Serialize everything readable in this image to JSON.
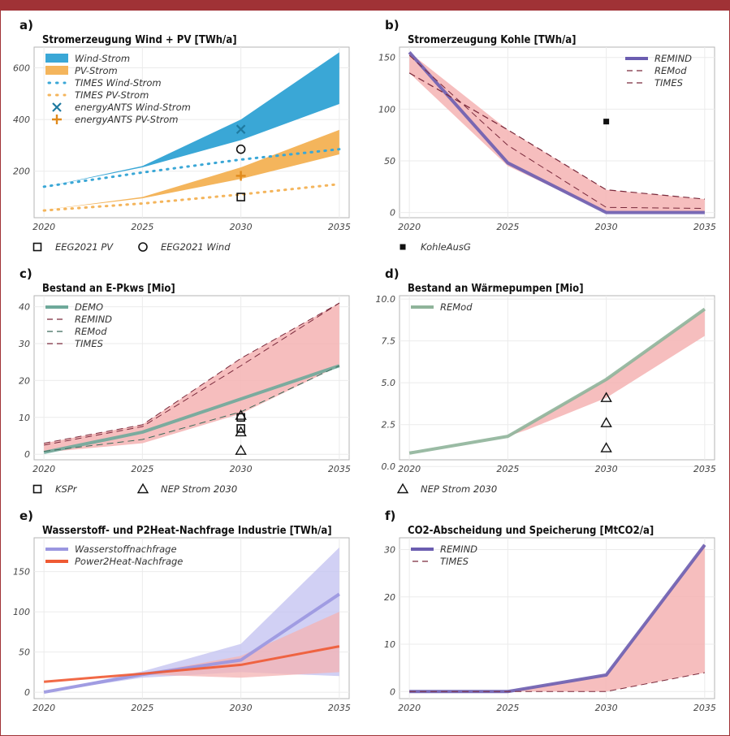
{
  "colors": {
    "frame": "#a03236",
    "wind": "#3aa7d6",
    "pv": "#f4b55c",
    "purple": "#6b5db0",
    "band_red": "#f4b3b3",
    "dark_red": "#7a2a3c",
    "green": "#6ea99a",
    "green_line": "#8fb49a",
    "lavender": "#9a96e0",
    "orange": "#ef5a33",
    "black": "#111111"
  },
  "chart_data": [
    {
      "id": "a",
      "label": "a)",
      "type": "area",
      "title": "Stromerzeugung Wind + PV [TWh/a]",
      "x_ticks": [
        "2020",
        "2025",
        "2030",
        "2035"
      ],
      "y_ticks": [
        200,
        400,
        600
      ],
      "xlim": [
        2019.5,
        2035.5
      ],
      "ylim": [
        20,
        680
      ],
      "bands": [
        {
          "name": "Wind-Strom",
          "color": "#3aa7d6",
          "x": [
            2020,
            2025,
            2030,
            2035
          ],
          "lower": [
            138,
            215,
            320,
            460
          ],
          "upper": [
            138,
            220,
            400,
            660
          ]
        },
        {
          "name": "PV-Strom",
          "color": "#f4b55c",
          "x": [
            2020,
            2025,
            2030,
            2035
          ],
          "lower": [
            50,
            95,
            170,
            265
          ],
          "upper": [
            50,
            100,
            215,
            360
          ]
        }
      ],
      "lines": [
        {
          "name": "TIMES Wind-Strom",
          "color": "#3aa7d6",
          "dash": "dot",
          "x": [
            2020,
            2025,
            2030,
            2035
          ],
          "y": [
            140,
            195,
            245,
            285
          ]
        },
        {
          "name": "TIMES PV-Strom",
          "color": "#f4b55c",
          "dash": "dot",
          "x": [
            2020,
            2025,
            2030,
            2035
          ],
          "y": [
            48,
            75,
            110,
            150
          ]
        }
      ],
      "points": [
        {
          "name": "energyANTS Wind-Strom",
          "marker": "x",
          "color": "#1f7aa0",
          "x": 2030,
          "y": 362
        },
        {
          "name": "energyANTS PV-Strom",
          "marker": "plus",
          "color": "#e08a1c",
          "x": 2030,
          "y": 182
        },
        {
          "name": "EEG2021 Wind",
          "marker": "circle",
          "color": "#111111",
          "x": 2030,
          "y": 285
        },
        {
          "name": "EEG2021 PV",
          "marker": "square",
          "color": "#111111",
          "x": 2030,
          "y": 100
        }
      ],
      "legend": [
        {
          "label": "Wind-Strom",
          "kind": "band",
          "color": "#3aa7d6"
        },
        {
          "label": "PV-Strom",
          "kind": "band",
          "color": "#f4b55c"
        },
        {
          "label": "TIMES Wind-Strom",
          "kind": "dot",
          "color": "#3aa7d6"
        },
        {
          "label": "TIMES PV-Strom",
          "kind": "dot",
          "color": "#f4b55c"
        },
        {
          "label": "energyANTS Wind-Strom",
          "kind": "x",
          "color": "#1f7aa0"
        },
        {
          "label": "energyANTS PV-Strom",
          "kind": "plus",
          "color": "#e08a1c"
        }
      ],
      "bottom_legend": [
        {
          "label": "EEG2021 PV",
          "marker": "square"
        },
        {
          "label": "EEG2021 Wind",
          "marker": "circle"
        }
      ]
    },
    {
      "id": "b",
      "label": "b)",
      "type": "line",
      "title": "Stromerzeugung Kohle [TWh/a]",
      "x_ticks": [
        "2020",
        "2025",
        "2030",
        "2035"
      ],
      "y_ticks": [
        0,
        50,
        100,
        150
      ],
      "xlim": [
        2019.5,
        2035.5
      ],
      "ylim": [
        -5,
        160
      ],
      "bands": [
        {
          "name": "range",
          "color": "#f4b3b3",
          "x": [
            2020,
            2025,
            2030,
            2035
          ],
          "lower": [
            135,
            45,
            0,
            0
          ],
          "upper": [
            155,
            80,
            22,
            13
          ]
        }
      ],
      "lines": [
        {
          "name": "REMIND",
          "color": "#6b5db0",
          "dash": "solid",
          "width": 4,
          "x": [
            2020,
            2025,
            2030,
            2035
          ],
          "y": [
            155,
            48,
            0,
            0
          ]
        },
        {
          "name": "REMod",
          "color": "#7a2a3c",
          "dash": "dash",
          "width": 1,
          "x": [
            2020,
            2025,
            2030,
            2035
          ],
          "y": [
            152,
            65,
            5,
            4
          ]
        },
        {
          "name": "TIMES",
          "color": "#7a2a3c",
          "dash": "dash",
          "width": 1.2,
          "x": [
            2020,
            2025,
            2030,
            2035
          ],
          "y": [
            135,
            80,
            22,
            13
          ]
        }
      ],
      "points": [
        {
          "name": "KohleAusG",
          "marker": "fsquare",
          "color": "#111111",
          "x": 2030,
          "y": 88
        }
      ],
      "legend": [
        {
          "label": "REMIND",
          "kind": "thick",
          "color": "#6b5db0"
        },
        {
          "label": "REMod",
          "kind": "dash",
          "color": "#7a2a3c"
        },
        {
          "label": "TIMES",
          "kind": "dash",
          "color": "#7a2a3c"
        }
      ],
      "bottom_legend": [
        {
          "label": "KohleAusG",
          "marker": "fsquare"
        }
      ]
    },
    {
      "id": "c",
      "label": "c)",
      "type": "line",
      "title": "Bestand an E-Pkws [Mio]",
      "x_ticks": [
        "2020",
        "2025",
        "2030",
        "2035"
      ],
      "y_ticks": [
        0,
        10,
        20,
        30,
        40
      ],
      "xlim": [
        2019.5,
        2035.5
      ],
      "ylim": [
        -1.5,
        43
      ],
      "bands": [
        {
          "name": "range",
          "color": "#f4b3b3",
          "x": [
            2020,
            2025,
            2030,
            2035
          ],
          "lower": [
            0.5,
            3,
            11,
            24
          ],
          "upper": [
            3,
            8,
            26,
            41
          ]
        }
      ],
      "lines": [
        {
          "name": "DEMO",
          "color": "#6ea99a",
          "dash": "solid",
          "width": 4,
          "x": [
            2020,
            2025,
            2030,
            2035
          ],
          "y": [
            0.5,
            6,
            15,
            24
          ]
        },
        {
          "name": "REMIND",
          "color": "#7a2a3c",
          "dash": "dash",
          "width": 1,
          "x": [
            2020,
            2025,
            2030,
            2035
          ],
          "y": [
            2.5,
            7.5,
            24,
            41
          ]
        },
        {
          "name": "REMod",
          "color": "#3c6a5a",
          "dash": "dash",
          "width": 1,
          "x": [
            2020,
            2025,
            2030,
            2035
          ],
          "y": [
            0.8,
            4,
            11.5,
            24
          ]
        },
        {
          "name": "TIMES",
          "color": "#7a2a3c",
          "dash": "dash",
          "width": 1,
          "x": [
            2020,
            2025,
            2030,
            2035
          ],
          "y": [
            3,
            8,
            26,
            41
          ]
        }
      ],
      "points": [
        {
          "name": "KSPr",
          "marker": "square",
          "color": "#111111",
          "x": 2030,
          "y": 10
        },
        {
          "name": "KSPr",
          "marker": "square",
          "color": "#111111",
          "x": 2030,
          "y": 7
        },
        {
          "name": "NEP Strom 2030",
          "marker": "triangle",
          "color": "#111111",
          "x": 2030,
          "y": 10.5
        },
        {
          "name": "NEP Strom 2030",
          "marker": "triangle",
          "color": "#111111",
          "x": 2030,
          "y": 6
        },
        {
          "name": "NEP Strom 2030",
          "marker": "triangle",
          "color": "#111111",
          "x": 2030,
          "y": 1
        }
      ],
      "legend": [
        {
          "label": "DEMO",
          "kind": "thick",
          "color": "#6ea99a"
        },
        {
          "label": "REMIND",
          "kind": "dash",
          "color": "#7a2a3c"
        },
        {
          "label": "REMod",
          "kind": "dash",
          "color": "#3c6a5a"
        },
        {
          "label": "TIMES",
          "kind": "dash",
          "color": "#7a2a3c"
        }
      ],
      "bottom_legend": [
        {
          "label": "KSPr",
          "marker": "square"
        },
        {
          "label": "NEP Strom 2030",
          "marker": "triangle"
        }
      ]
    },
    {
      "id": "d",
      "label": "d)",
      "type": "line",
      "title": "Bestand an Wärmepumpen [Mio]",
      "x_ticks": [
        "2020",
        "2025",
        "2030",
        "2035"
      ],
      "y_ticks": [
        0.0,
        2.5,
        5.0,
        7.5,
        10.0
      ],
      "y_tick_labels": [
        "0.0",
        "2.5",
        "5.0",
        "7.5",
        "10.0"
      ],
      "xlim": [
        2019.5,
        2035.5
      ],
      "ylim": [
        0.4,
        10.2
      ],
      "bands": [
        {
          "name": "range",
          "color": "#f4b3b3",
          "x": [
            2020,
            2025,
            2026,
            2030,
            2035
          ],
          "lower": [
            0.8,
            1.8,
            2.2,
            4.1,
            7.8
          ],
          "upper": [
            0.8,
            1.8,
            2.5,
            5.2,
            9.4
          ]
        }
      ],
      "lines": [
        {
          "name": "REMod",
          "color": "#8fb49a",
          "dash": "solid",
          "width": 4,
          "x": [
            2020,
            2025,
            2030,
            2035
          ],
          "y": [
            0.8,
            1.8,
            5.2,
            9.4
          ]
        }
      ],
      "points": [
        {
          "name": "NEP Strom 2030",
          "marker": "triangle",
          "color": "#111111",
          "x": 2030,
          "y": 4.1
        },
        {
          "name": "NEP Strom 2030",
          "marker": "triangle",
          "color": "#111111",
          "x": 2030,
          "y": 2.6
        },
        {
          "name": "NEP Strom 2030",
          "marker": "triangle",
          "color": "#111111",
          "x": 2030,
          "y": 1.1
        }
      ],
      "legend": [
        {
          "label": "REMod",
          "kind": "thick",
          "color": "#8fb49a"
        }
      ],
      "bottom_legend": [
        {
          "label": "NEP Strom 2030",
          "marker": "triangle"
        }
      ]
    },
    {
      "id": "e",
      "label": "e)",
      "type": "area",
      "title": "Wasserstoff- und P2Heat-Nachfrage Industrie [TWh/a]",
      "x_ticks": [
        "2020",
        "2025",
        "2030",
        "2035"
      ],
      "y_ticks": [
        0,
        50,
        100,
        150
      ],
      "xlim": [
        2019.5,
        2035.5
      ],
      "ylim": [
        -8,
        192
      ],
      "bands": [
        {
          "name": "Wasserstoffnachfrage",
          "color": "#c2c0f0",
          "x": [
            2020,
            2025,
            2030,
            2035
          ],
          "lower": [
            0,
            18,
            25,
            20
          ],
          "upper": [
            0,
            26,
            60,
            180
          ]
        },
        {
          "name": "Power2Heat-Nachfrage",
          "color": "#f4b3b3",
          "x": [
            2020,
            2025,
            2030,
            2035
          ],
          "lower": [
            13,
            22,
            18,
            25
          ],
          "upper": [
            13,
            23,
            45,
            100
          ]
        }
      ],
      "lines": [
        {
          "name": "Wasserstoffnachfrage",
          "color": "#9a96e0",
          "dash": "solid",
          "width": 4,
          "x": [
            2020,
            2025,
            2030,
            2035
          ],
          "y": [
            0,
            22,
            40,
            122
          ]
        },
        {
          "name": "Power2Heat-Nachfrage",
          "color": "#ef5a33",
          "dash": "solid",
          "width": 3,
          "x": [
            2020,
            2025,
            2030,
            2035
          ],
          "y": [
            13,
            23,
            34,
            57
          ]
        }
      ],
      "points": [],
      "legend": [
        {
          "label": "Wasserstoffnachfrage",
          "kind": "thick",
          "color": "#9a96e0"
        },
        {
          "label": "Power2Heat-Nachfrage",
          "kind": "thick",
          "color": "#ef5a33"
        }
      ],
      "bottom_legend": []
    },
    {
      "id": "f",
      "label": "f)",
      "type": "line",
      "title": "CO2-Abscheidung und Speicherung [MtCO2/a]",
      "x_ticks": [
        "2020",
        "2025",
        "2030",
        "2035"
      ],
      "y_ticks": [
        0,
        10,
        20,
        30
      ],
      "xlim": [
        2019.5,
        2035.5
      ],
      "ylim": [
        -1.5,
        32.5
      ],
      "bands": [
        {
          "name": "range",
          "color": "#f4b3b3",
          "x": [
            2020,
            2025,
            2030,
            2035
          ],
          "lower": [
            0,
            0,
            0,
            4
          ],
          "upper": [
            0,
            0,
            3.5,
            31
          ]
        }
      ],
      "lines": [
        {
          "name": "REMIND",
          "color": "#6b5db0",
          "dash": "solid",
          "width": 4,
          "x": [
            2020,
            2025,
            2030,
            2035
          ],
          "y": [
            0,
            0,
            3.5,
            31
          ]
        },
        {
          "name": "TIMES",
          "color": "#7a2a3c",
          "dash": "dash",
          "width": 1,
          "x": [
            2020,
            2025,
            2030,
            2035
          ],
          "y": [
            0,
            0,
            0,
            4
          ]
        }
      ],
      "points": [],
      "legend": [
        {
          "label": "REMIND",
          "kind": "thick",
          "color": "#6b5db0"
        },
        {
          "label": "TIMES",
          "kind": "dash",
          "color": "#7a2a3c"
        }
      ],
      "bottom_legend": []
    }
  ]
}
